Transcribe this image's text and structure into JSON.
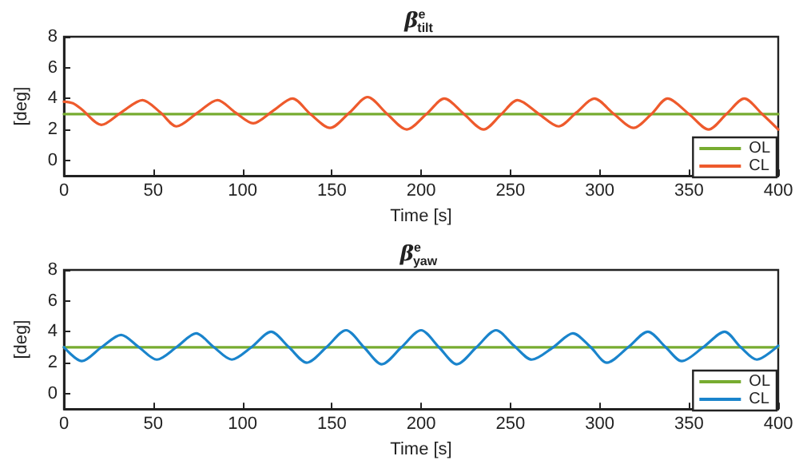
{
  "chart_data": [
    {
      "type": "line",
      "title": "β$^{e}$$_{tilt}$",
      "xlabel": "Time [s]",
      "ylabel": "[deg]",
      "xlim": [
        0,
        400
      ],
      "xticks": [
        0,
        50,
        100,
        150,
        200,
        250,
        300,
        350,
        400
      ],
      "ylim": [
        -1,
        8
      ],
      "yticks": [
        0,
        2,
        4,
        6,
        8
      ],
      "grid": false,
      "legend": "bottom right",
      "marker": "none",
      "line_style": "solid",
      "series": [
        {
          "name": "OL",
          "color": "#77ac30",
          "x": [
            0,
            400
          ],
          "values": [
            3,
            3
          ]
        },
        {
          "name": "CL",
          "color": "#ee5a2c",
          "x": [
            0,
            5,
            10,
            21,
            32,
            44,
            54,
            63,
            75,
            86,
            96,
            106,
            117,
            128,
            138,
            149,
            160,
            170,
            181,
            192,
            203,
            213,
            224,
            235,
            245,
            254,
            266,
            277,
            287,
            297,
            308,
            319,
            329,
            338,
            350,
            361,
            371,
            381,
            391,
            400
          ],
          "values": [
            3.8,
            3.7,
            3.3,
            2.3,
            3.1,
            3.9,
            3.1,
            2.2,
            3.1,
            3.9,
            3.1,
            2.4,
            3.2,
            4.0,
            3.0,
            2.1,
            3.1,
            4.1,
            3.0,
            2.0,
            3.0,
            4.0,
            3.0,
            2.0,
            3.0,
            3.9,
            3.0,
            2.2,
            3.1,
            4.0,
            3.0,
            2.1,
            3.0,
            4.0,
            3.0,
            2.0,
            3.0,
            4.0,
            3.0,
            2.0
          ]
        }
      ]
    },
    {
      "type": "line",
      "title": "β$^{e}$$_{yaw}$",
      "xlabel": "Time [s]",
      "ylabel": "[deg]",
      "xlim": [
        0,
        400
      ],
      "xticks": [
        0,
        50,
        100,
        150,
        200,
        250,
        300,
        350,
        400
      ],
      "ylim": [
        -1,
        8
      ],
      "yticks": [
        0,
        2,
        4,
        6,
        8
      ],
      "grid": false,
      "legend": "bottom right",
      "marker": "none",
      "line_style": "solid",
      "series": [
        {
          "name": "OL",
          "color": "#77ac30",
          "x": [
            0,
            400
          ],
          "values": [
            3,
            3
          ]
        },
        {
          "name": "CL",
          "color": "#1a84cc",
          "x": [
            0,
            10,
            21,
            32,
            42,
            52,
            63,
            74,
            84,
            94,
            105,
            116,
            126,
            136,
            147,
            158,
            168,
            178,
            189,
            200,
            210,
            220,
            231,
            242,
            252,
            262,
            274,
            285,
            295,
            304,
            316,
            327,
            337,
            346,
            358,
            370,
            379,
            388,
            400
          ],
          "values": [
            3.0,
            2.1,
            3.0,
            3.8,
            3.0,
            2.2,
            3.0,
            3.9,
            3.0,
            2.2,
            3.0,
            4.0,
            3.0,
            2.0,
            3.0,
            4.1,
            3.0,
            1.9,
            3.0,
            4.1,
            3.0,
            1.9,
            3.0,
            4.1,
            3.1,
            2.2,
            3.0,
            3.9,
            3.0,
            2.0,
            3.0,
            4.0,
            3.0,
            2.1,
            3.0,
            4.0,
            3.0,
            2.2,
            3.1
          ]
        }
      ]
    }
  ]
}
